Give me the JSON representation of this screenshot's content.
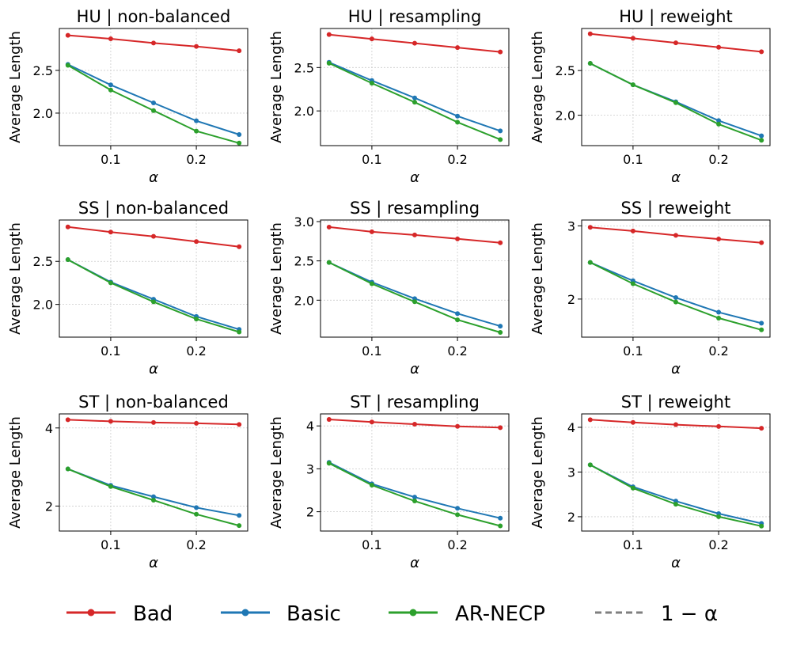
{
  "chart_data": [
    {
      "type": "line",
      "title": "HU | non-balanced",
      "xlabel": "α",
      "ylabel": "Average Length",
      "x": [
        0.05,
        0.1,
        0.15,
        0.2,
        0.25
      ],
      "xlim": [
        0.04,
        0.26
      ],
      "xticks": [
        "0.1",
        "0.2"
      ],
      "xtick_values": [
        0.1,
        0.2
      ],
      "ylim": [
        1.62,
        2.99
      ],
      "yticks": [
        "2.0",
        "2.5"
      ],
      "ytick_values": [
        2.0,
        2.5
      ],
      "grid": true,
      "series": [
        {
          "name": "Bad",
          "values": [
            2.91,
            2.87,
            2.82,
            2.78,
            2.73
          ]
        },
        {
          "name": "Basic",
          "values": [
            2.57,
            2.33,
            2.12,
            1.91,
            1.75
          ]
        },
        {
          "name": "AR-NECP",
          "values": [
            2.56,
            2.27,
            2.03,
            1.79,
            1.65
          ]
        }
      ]
    },
    {
      "type": "line",
      "title": "HU | resampling",
      "xlabel": "α",
      "ylabel": "Average Length",
      "x": [
        0.05,
        0.1,
        0.15,
        0.2,
        0.25
      ],
      "xlim": [
        0.04,
        0.26
      ],
      "xticks": [
        "0.1",
        "0.2"
      ],
      "xtick_values": [
        0.1,
        0.2
      ],
      "ylim": [
        1.6,
        2.95
      ],
      "yticks": [
        "2.0",
        "2.5"
      ],
      "ytick_values": [
        2.0,
        2.5
      ],
      "grid": true,
      "series": [
        {
          "name": "Bad",
          "values": [
            2.88,
            2.83,
            2.78,
            2.73,
            2.68
          ]
        },
        {
          "name": "Basic",
          "values": [
            2.56,
            2.35,
            2.15,
            1.94,
            1.77
          ]
        },
        {
          "name": "AR-NECP",
          "values": [
            2.55,
            2.32,
            2.1,
            1.87,
            1.67
          ]
        }
      ]
    },
    {
      "type": "line",
      "title": "HU | reweight",
      "xlabel": "α",
      "ylabel": "Average Length",
      "x": [
        0.05,
        0.1,
        0.15,
        0.2,
        0.25
      ],
      "xlim": [
        0.04,
        0.26
      ],
      "xticks": [
        "0.1",
        "0.2"
      ],
      "xtick_values": [
        0.1,
        0.2
      ],
      "ylim": [
        1.66,
        2.97
      ],
      "yticks": [
        "2.0",
        "2.5"
      ],
      "ytick_values": [
        2.0,
        2.5
      ],
      "grid": true,
      "series": [
        {
          "name": "Bad",
          "values": [
            2.91,
            2.86,
            2.81,
            2.76,
            2.71
          ]
        },
        {
          "name": "Basic",
          "values": [
            2.58,
            2.34,
            2.15,
            1.94,
            1.77
          ]
        },
        {
          "name": "AR-NECP",
          "values": [
            2.58,
            2.34,
            2.14,
            1.9,
            1.72
          ]
        }
      ]
    },
    {
      "type": "line",
      "title": "SS | non-balanced",
      "xlabel": "α",
      "ylabel": "Average Length",
      "x": [
        0.05,
        0.1,
        0.15,
        0.2,
        0.25
      ],
      "xlim": [
        0.04,
        0.26
      ],
      "xticks": [
        "0.1",
        "0.2"
      ],
      "xtick_values": [
        0.1,
        0.2
      ],
      "ylim": [
        1.62,
        2.98
      ],
      "yticks": [
        "2.0",
        "2.5"
      ],
      "ytick_values": [
        2.0,
        2.5
      ],
      "grid": true,
      "series": [
        {
          "name": "Bad",
          "values": [
            2.9,
            2.84,
            2.79,
            2.73,
            2.67
          ]
        },
        {
          "name": "Basic",
          "values": [
            2.52,
            2.26,
            2.06,
            1.86,
            1.71
          ]
        },
        {
          "name": "AR-NECP",
          "values": [
            2.52,
            2.25,
            2.03,
            1.83,
            1.68
          ]
        }
      ]
    },
    {
      "type": "line",
      "title": "SS | resampling",
      "xlabel": "α",
      "ylabel": "Average Length",
      "x": [
        0.05,
        0.1,
        0.15,
        0.2,
        0.25
      ],
      "xlim": [
        0.04,
        0.26
      ],
      "xticks": [
        "0.1",
        "0.2"
      ],
      "xtick_values": [
        0.1,
        0.2
      ],
      "ylim": [
        1.53,
        3.02
      ],
      "yticks": [
        "2.0",
        "2.5",
        "3.0"
      ],
      "ytick_values": [
        2.0,
        2.5,
        3.0
      ],
      "grid": true,
      "series": [
        {
          "name": "Bad",
          "values": [
            2.93,
            2.87,
            2.83,
            2.78,
            2.73
          ]
        },
        {
          "name": "Basic",
          "values": [
            2.48,
            2.23,
            2.02,
            1.83,
            1.67
          ]
        },
        {
          "name": "AR-NECP",
          "values": [
            2.48,
            2.21,
            1.98,
            1.75,
            1.59
          ]
        }
      ]
    },
    {
      "type": "line",
      "title": "SS | reweight",
      "xlabel": "α",
      "ylabel": "Average Length",
      "x": [
        0.05,
        0.1,
        0.15,
        0.2,
        0.25
      ],
      "xlim": [
        0.04,
        0.26
      ],
      "xticks": [
        "0.1",
        "0.2"
      ],
      "xtick_values": [
        0.1,
        0.2
      ],
      "ylim": [
        1.48,
        3.08
      ],
      "yticks": [
        "2",
        "3"
      ],
      "ytick_values": [
        2,
        3
      ],
      "grid": true,
      "series": [
        {
          "name": "Bad",
          "values": [
            2.98,
            2.93,
            2.87,
            2.82,
            2.77
          ]
        },
        {
          "name": "Basic",
          "values": [
            2.5,
            2.25,
            2.02,
            1.82,
            1.67
          ]
        },
        {
          "name": "AR-NECP",
          "values": [
            2.5,
            2.21,
            1.96,
            1.74,
            1.58
          ]
        }
      ]
    },
    {
      "type": "line",
      "title": "ST | non-balanced",
      "xlabel": "α",
      "ylabel": "Average Length",
      "x": [
        0.05,
        0.1,
        0.15,
        0.2,
        0.25
      ],
      "xlim": [
        0.04,
        0.26
      ],
      "xticks": [
        "0.1",
        "0.2"
      ],
      "xtick_values": [
        0.1,
        0.2
      ],
      "ylim": [
        1.36,
        4.36
      ],
      "yticks": [
        "2",
        "4"
      ],
      "ytick_values": [
        2,
        4
      ],
      "grid": true,
      "series": [
        {
          "name": "Bad",
          "values": [
            4.21,
            4.17,
            4.14,
            4.12,
            4.09
          ]
        },
        {
          "name": "Basic",
          "values": [
            2.95,
            2.53,
            2.24,
            1.96,
            1.76
          ]
        },
        {
          "name": "AR-NECP",
          "values": [
            2.95,
            2.5,
            2.15,
            1.79,
            1.5
          ]
        }
      ]
    },
    {
      "type": "line",
      "title": "ST | resampling",
      "xlabel": "α",
      "ylabel": "Average Length",
      "x": [
        0.05,
        0.1,
        0.15,
        0.2,
        0.25
      ],
      "xlim": [
        0.04,
        0.26
      ],
      "xticks": [
        "0.1",
        "0.2"
      ],
      "xtick_values": [
        0.1,
        0.2
      ],
      "ylim": [
        1.55,
        4.28
      ],
      "yticks": [
        "2",
        "3",
        "4"
      ],
      "ytick_values": [
        2,
        3,
        4
      ],
      "grid": true,
      "series": [
        {
          "name": "Bad",
          "values": [
            4.15,
            4.09,
            4.04,
            3.99,
            3.96
          ]
        },
        {
          "name": "Basic",
          "values": [
            3.15,
            2.65,
            2.34,
            2.08,
            1.85
          ]
        },
        {
          "name": "AR-NECP",
          "values": [
            3.13,
            2.62,
            2.25,
            1.93,
            1.67
          ]
        }
      ]
    },
    {
      "type": "line",
      "title": "ST | reweight",
      "xlabel": "α",
      "ylabel": "Average Length",
      "x": [
        0.05,
        0.1,
        0.15,
        0.2,
        0.25
      ],
      "xlim": [
        0.04,
        0.26
      ],
      "xticks": [
        "0.1",
        "0.2"
      ],
      "xtick_values": [
        0.1,
        0.2
      ],
      "ylim": [
        1.68,
        4.3
      ],
      "yticks": [
        "2",
        "3",
        "4"
      ],
      "ytick_values": [
        2,
        3,
        4
      ],
      "grid": true,
      "series": [
        {
          "name": "Bad",
          "values": [
            4.17,
            4.11,
            4.06,
            4.02,
            3.98
          ]
        },
        {
          "name": "Basic",
          "values": [
            3.16,
            2.67,
            2.35,
            2.07,
            1.85
          ]
        },
        {
          "name": "AR-NECP",
          "values": [
            3.16,
            2.64,
            2.28,
            2.0,
            1.79
          ]
        }
      ]
    }
  ],
  "legend": {
    "placement": "bottom",
    "items": [
      {
        "label": "Bad",
        "color": "#d62728",
        "style": "solid-marker"
      },
      {
        "label": "Basic",
        "color": "#1f77b4",
        "style": "solid-marker"
      },
      {
        "label": "AR-NECP",
        "color": "#2ca02c",
        "style": "solid-marker"
      },
      {
        "label": "1 − α",
        "color": "#7f7f7f",
        "style": "dashed"
      }
    ]
  },
  "colors": {
    "Bad": "#d62728",
    "Basic": "#1f77b4",
    "AR-NECP": "#2ca02c",
    "grid": "#cccccc",
    "reference": "#7f7f7f"
  }
}
